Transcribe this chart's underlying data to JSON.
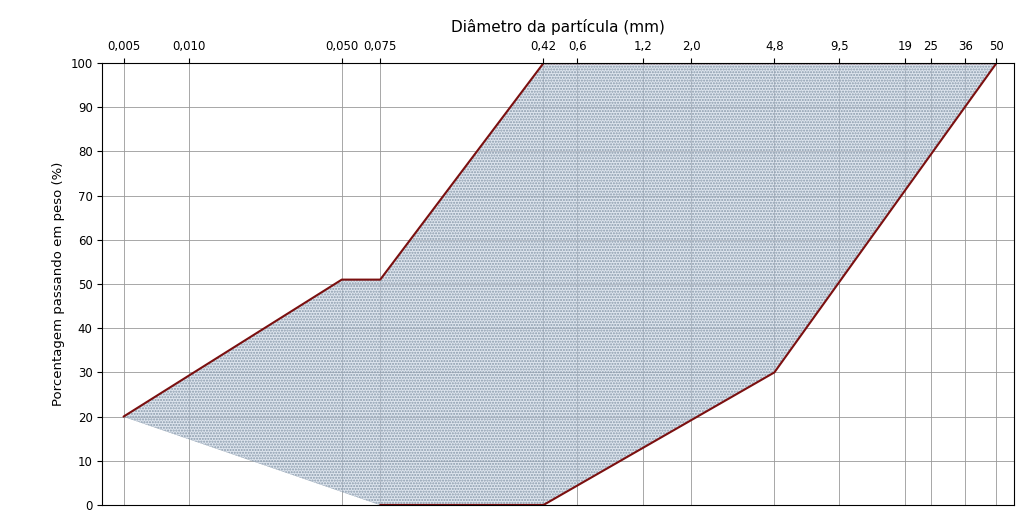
{
  "title": "Diâmetro da partícula (mm)",
  "ylabel": "Porcentagem passando em peso (%)",
  "x_tick_positions": [
    0.005,
    0.01,
    0.05,
    0.075,
    0.42,
    0.6,
    1.2,
    2.0,
    4.8,
    9.5,
    19,
    25,
    36,
    50
  ],
  "x_tick_labels": [
    "0,005",
    "0,010",
    "0,050",
    "0,075",
    "0,42",
    "0,6",
    "1,2",
    "2,0",
    "4,8",
    "9,5",
    "19",
    "25",
    "36",
    "50"
  ],
  "y_ticks": [
    0,
    10,
    20,
    30,
    40,
    50,
    60,
    70,
    80,
    90,
    100
  ],
  "xlim_log": [
    0.004,
    60
  ],
  "ylim": [
    0,
    100
  ],
  "upper_curve_x": [
    0.005,
    0.05,
    0.075,
    0.42,
    50
  ],
  "upper_curve_y": [
    20,
    51,
    51,
    100,
    100
  ],
  "lower_curve_x": [
    0.075,
    0.42,
    4.8,
    50
  ],
  "lower_curve_y": [
    0,
    0,
    30,
    100
  ],
  "line_color": "#7B1010",
  "fill_color": "#c8d4e4",
  "fill_alpha": 0.6,
  "grid_color": "#999999",
  "grid_linewidth": 0.6,
  "background_color": "#ffffff",
  "title_fontsize": 11,
  "label_fontsize": 9.5,
  "tick_fontsize": 8.5
}
